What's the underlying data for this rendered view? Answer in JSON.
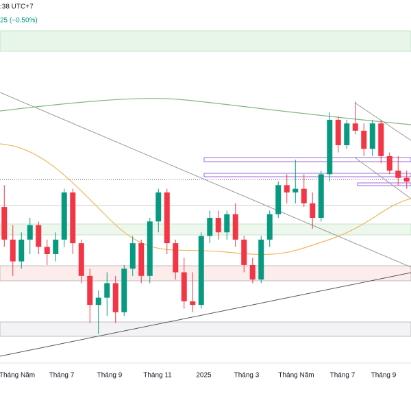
{
  "header": {
    "time": ":38 UTC+7",
    "change": "25 (−0.50%)"
  },
  "chart_data": {
    "type": "candlestick",
    "open": [
      43,
      34,
      28,
      34,
      38,
      32,
      30,
      34,
      47,
      33,
      24,
      16,
      18,
      22,
      14,
      26,
      33,
      24,
      39,
      47,
      33,
      25,
      17,
      16,
      35,
      40,
      36,
      41,
      34,
      27,
      23,
      34,
      41,
      49,
      47,
      48,
      44,
      40,
      52,
      67,
      60,
      66,
      64,
      59,
      66,
      57,
      53,
      51
    ],
    "high": [
      49,
      38,
      36,
      40,
      39,
      34,
      36,
      48,
      48,
      34,
      26,
      20,
      25,
      24,
      27,
      35,
      34,
      40,
      48,
      48,
      34,
      29,
      25,
      36,
      42,
      42,
      42,
      44,
      35,
      29,
      35,
      42,
      50,
      52,
      56,
      52,
      47,
      53,
      69,
      68,
      67,
      72,
      66,
      67,
      67,
      58,
      57,
      53
    ],
    "low": [
      32,
      24,
      26,
      30,
      30,
      27,
      28,
      32,
      30,
      22,
      11,
      8,
      13,
      11,
      13,
      24,
      22,
      22,
      36,
      30,
      23,
      15,
      14,
      15,
      33,
      34,
      34,
      32,
      25,
      22,
      22,
      32,
      40,
      44,
      44,
      43,
      37,
      39,
      50,
      58,
      59,
      63,
      57,
      57,
      55,
      52,
      49,
      48
    ],
    "close": [
      34,
      28,
      34,
      38,
      32,
      30,
      34,
      47,
      33,
      24,
      16,
      18,
      22,
      14,
      26,
      33,
      24,
      39,
      47,
      33,
      25,
      17,
      16,
      35,
      40,
      36,
      41,
      34,
      27,
      23,
      34,
      41,
      49,
      47,
      48,
      44,
      40,
      52,
      67,
      60,
      66,
      64,
      59,
      66,
      57,
      53,
      51,
      50
    ],
    "up_color": "#089981",
    "down_color": "#f23645",
    "ylim": [
      0,
      100
    ],
    "xlim": [
      0,
      48
    ],
    "xticks": [
      {
        "value": 2,
        "label": "Tháng Năm"
      },
      {
        "value": 7.2,
        "label": "Tháng 7"
      },
      {
        "value": 12.8,
        "label": "Tháng 9"
      },
      {
        "value": 18.4,
        "label": "Tháng 11"
      },
      {
        "value": 23.8,
        "label": "2025"
      },
      {
        "value": 28.8,
        "label": "Tháng 3"
      },
      {
        "value": 34.6,
        "label": "Tháng Năm"
      },
      {
        "value": 40,
        "label": "Tháng 7"
      },
      {
        "value": 44.8,
        "label": "Tháng 9"
      }
    ]
  }
}
